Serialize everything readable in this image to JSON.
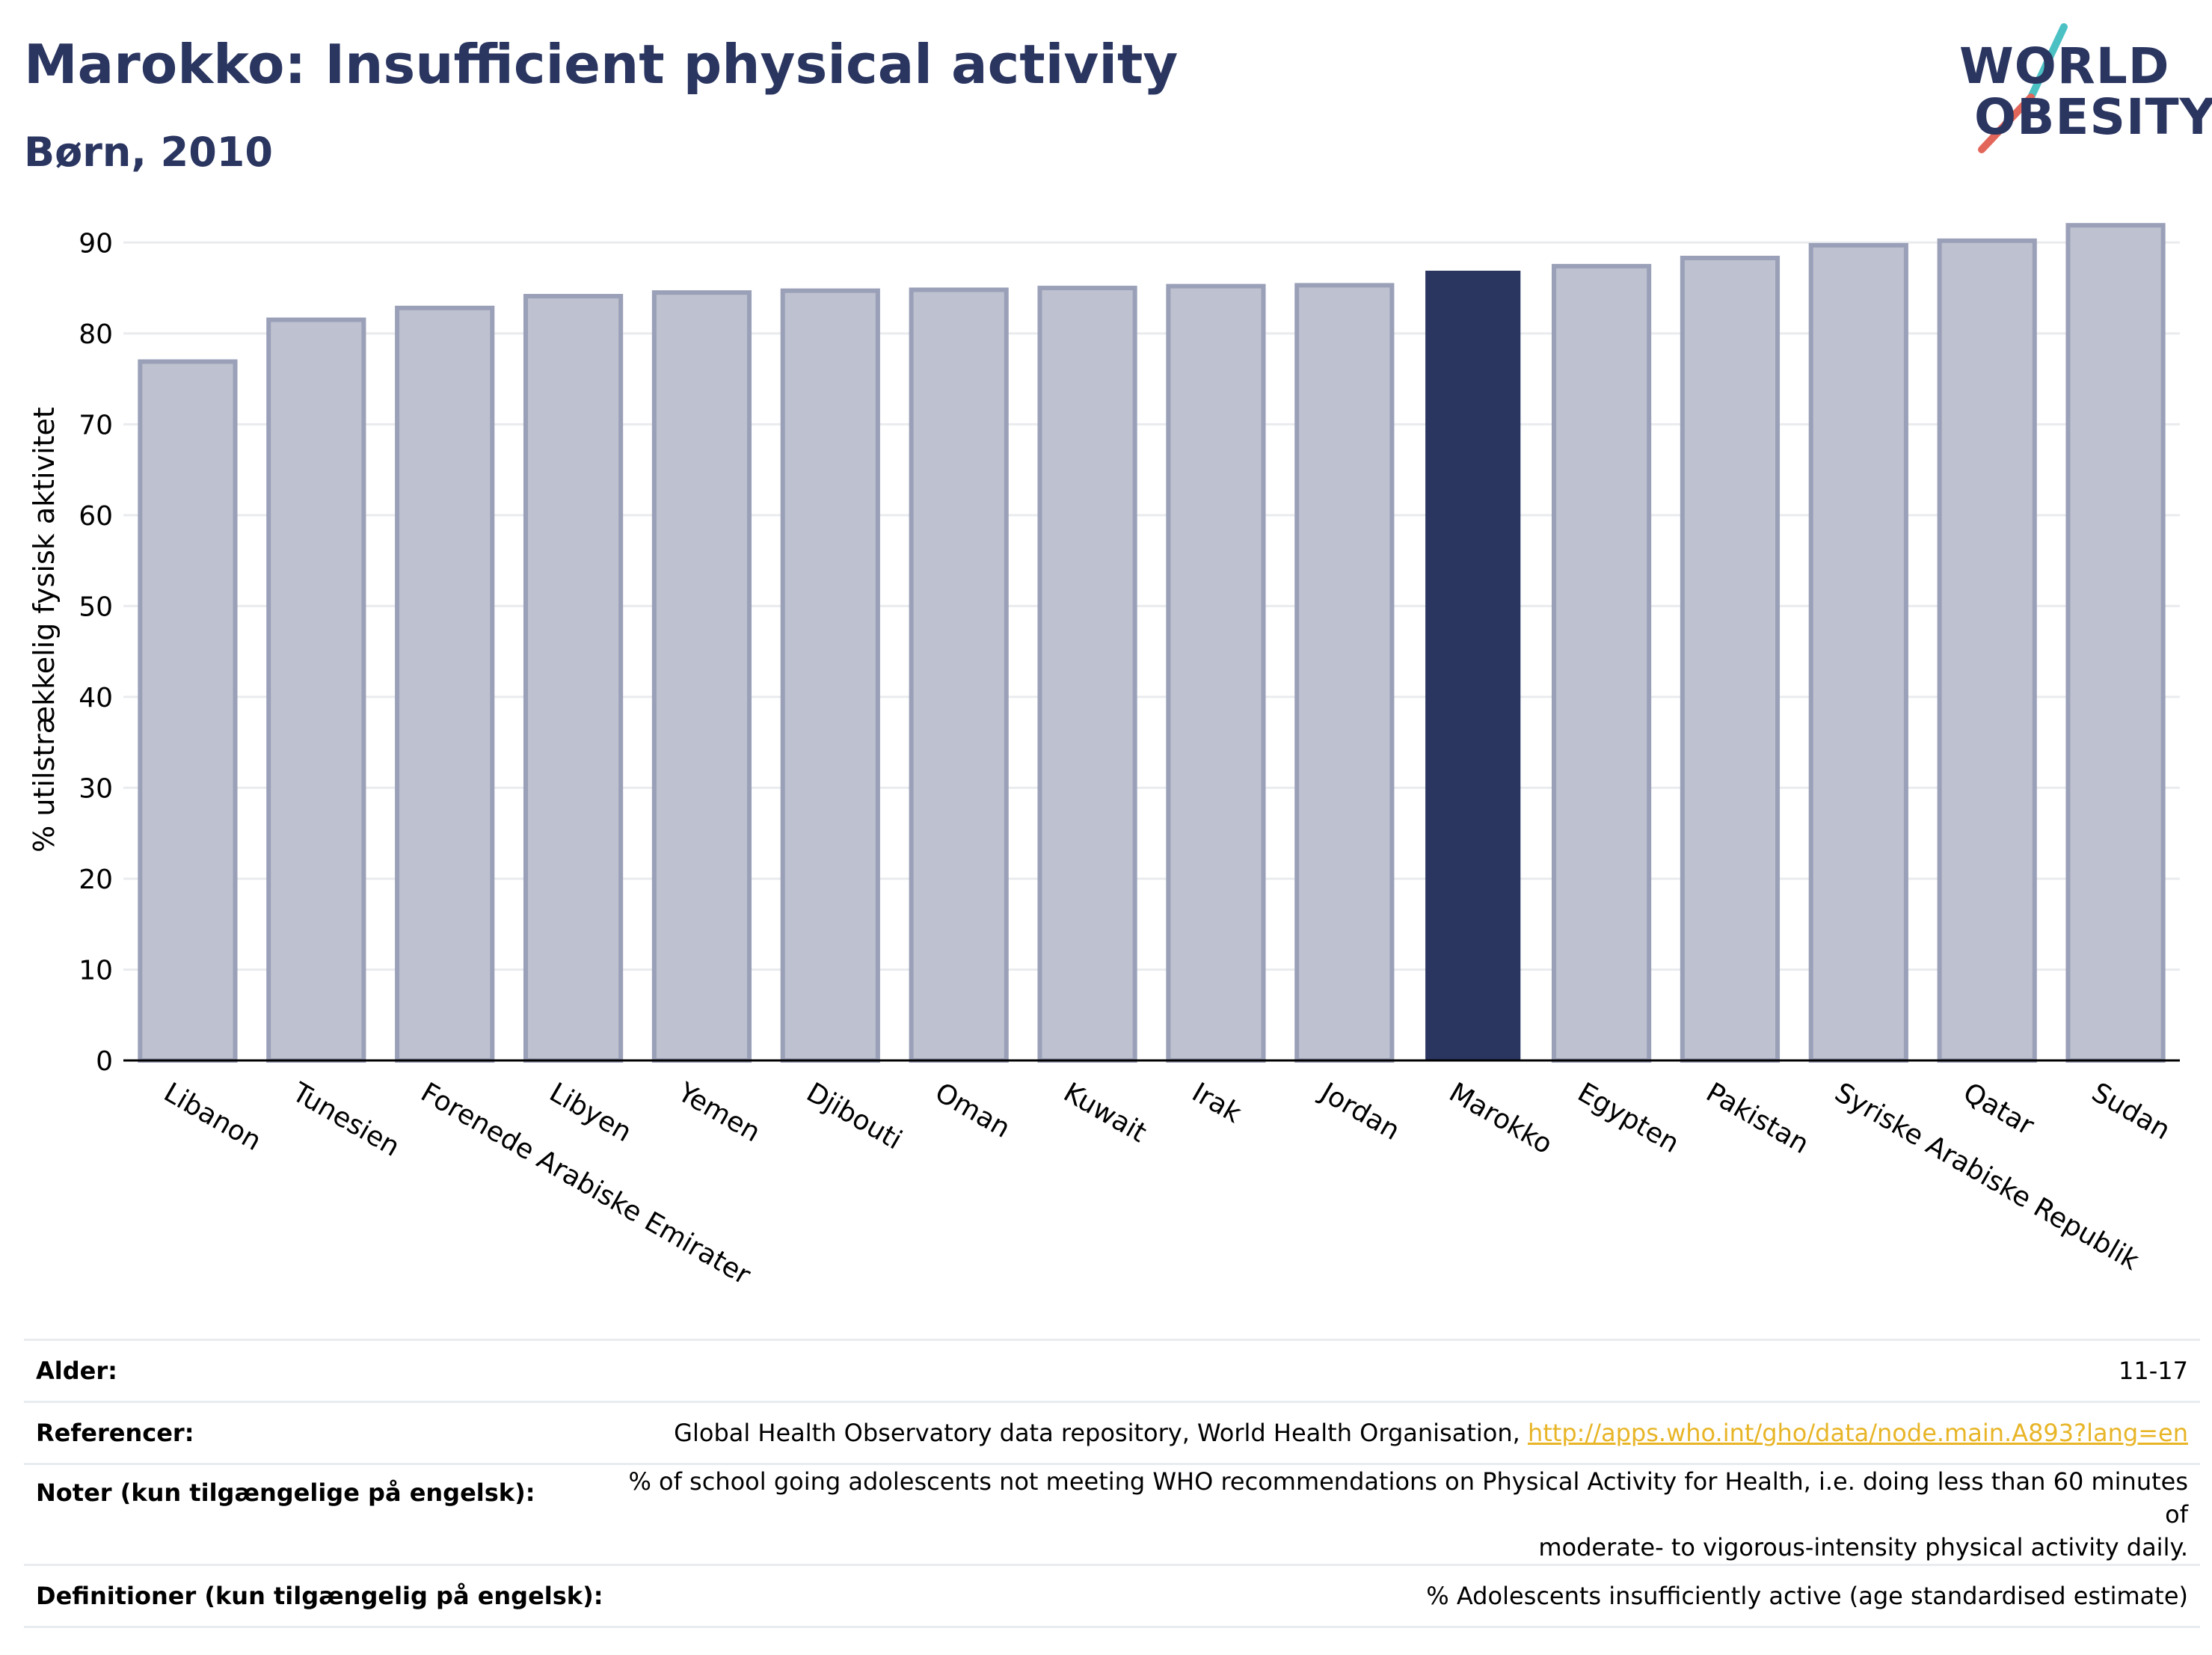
{
  "header": {
    "title": "Marokko: Insufficient physical activity",
    "subtitle": "Børn, 2010"
  },
  "logo": {
    "line1": "WORLD",
    "line2": "OBESITY",
    "colors": {
      "text": "#2a3560",
      "teal": "#4cc1c4",
      "coral": "#e2665a"
    }
  },
  "chart_data": {
    "type": "bar",
    "ylabel": "% utilstrækkelig fysisk aktivitet",
    "xlabel": "",
    "ylim": [
      0,
      92
    ],
    "yticks": [
      0,
      10,
      20,
      30,
      40,
      50,
      60,
      70,
      80,
      90
    ],
    "grid": true,
    "highlight": "Marokko",
    "colors": {
      "bar": "#bec1cf",
      "bar_edge": "#9aa0b8",
      "highlight": "#2a3560"
    },
    "categories": [
      "Libanon",
      "Tunesien",
      "Forenede Arabiske Emirater",
      "Libyen",
      "Yemen",
      "Djibouti",
      "Oman",
      "Kuwait",
      "Irak",
      "Jordan",
      "Marokko",
      "Egypten",
      "Pakistan",
      "Syriske Arabiske Republik",
      "Qatar",
      "Sudan"
    ],
    "values": [
      76.9,
      81.5,
      82.8,
      84.1,
      84.5,
      84.7,
      84.8,
      85.0,
      85.2,
      85.3,
      86.9,
      87.4,
      88.3,
      89.7,
      90.2,
      91.9
    ]
  },
  "info": [
    {
      "key": "Alder:",
      "value": "11-17"
    },
    {
      "key": "Referencer:",
      "value": "Global Health Observatory data repository, World Health Organisation, ",
      "link": "http://apps.who.int/gho/data/node.main.A893?lang=en"
    },
    {
      "key": "Noter (kun tilgængelige på engelsk):",
      "value": "% of school going adolescents not meeting WHO recommendations on Physical Activity for Health, i.e. doing less than 60 minutes of",
      "value2": "moderate- to vigorous-intensity physical activity daily."
    },
    {
      "key": "Definitioner (kun tilgængelig på engelsk):",
      "value": "% Adolescents insufficiently active (age standardised estimate)"
    }
  ]
}
